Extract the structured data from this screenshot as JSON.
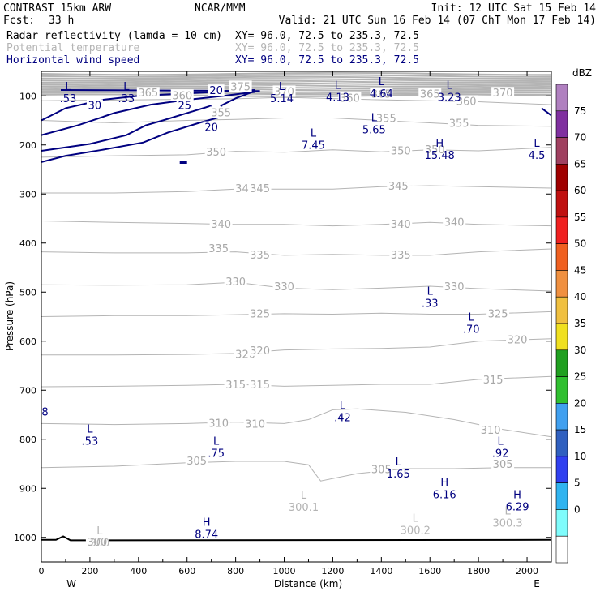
{
  "header": {
    "title": "CONTRAST 15km ARW",
    "source": "NCAR/MMM",
    "init": "Init: 12 UTC Sat 15 Feb 14",
    "fcst_label": "Fcst:",
    "fcst_value": "33 h",
    "valid": "Valid: 21 UTC Sun 16 Feb 14 (07 ChT Mon 17 Feb 14)",
    "fields": [
      {
        "name": "Radar reflectivity (lamda = 10 cm)",
        "xy": "XY=  96.0, 72.5 to 235.3, 72.5",
        "color": "#000000"
      },
      {
        "name": "Potential temperature",
        "xy": "XY=  96.0, 72.5 to 235.3, 72.5",
        "color": "#b4b4b4"
      },
      {
        "name": "Horizontal wind speed",
        "xy": "XY=  96.0, 72.5 to 235.3, 72.5",
        "color": "#000080"
      }
    ]
  },
  "chart_data": {
    "type": "cross-section contour",
    "xlabel": "Distance (km)",
    "ylabel": "Pressure (hPa)",
    "xlim": [
      0,
      2100
    ],
    "ylim": [
      1050,
      50
    ],
    "x_ticks": [
      0,
      200,
      400,
      600,
      800,
      1000,
      1200,
      1400,
      1600,
      1800,
      2000
    ],
    "y_ticks": [
      100,
      200,
      300,
      400,
      500,
      600,
      700,
      800,
      900,
      1000
    ],
    "x_end_labels": {
      "left": "W",
      "right": "E"
    },
    "colorbar": {
      "title": "dBZ",
      "levels": [
        "0",
        "5",
        "10",
        "15",
        "20",
        "25",
        "30",
        "35",
        "40",
        "45",
        "50",
        "55",
        "60",
        "65",
        "70",
        "75"
      ],
      "colors": [
        "#ffffff",
        "#7ffcfc",
        "#30b4f0",
        "#3040f0",
        "#3060c0",
        "#40a0f0",
        "#30c030",
        "#20a020",
        "#f0e020",
        "#f0c040",
        "#f09040",
        "#f06020",
        "#f02020",
        "#c01010",
        "#a00000",
        "#a04060",
        "#8030a0",
        "#b080c0"
      ]
    },
    "theta_contours": [
      {
        "value": 300,
        "labels": [
          {
            "x": 230,
            "p": 1010,
            "text": "300"
          }
        ]
      },
      {
        "value": 305,
        "p_profile": [
          [
            0,
            858
          ],
          [
            300,
            855
          ],
          [
            600,
            848
          ],
          [
            800,
            845
          ],
          [
            1000,
            845
          ],
          [
            1100,
            852
          ],
          [
            1150,
            885
          ],
          [
            1300,
            870
          ],
          [
            1500,
            860
          ],
          [
            1700,
            860
          ],
          [
            1900,
            858
          ],
          [
            2100,
            858
          ]
        ],
        "labels": [
          {
            "x": 640,
            "p": 845,
            "text": "305"
          },
          {
            "x": 1400,
            "p": 862,
            "text": "305"
          },
          {
            "x": 1900,
            "p": 852,
            "text": "305"
          }
        ]
      },
      {
        "value": 310,
        "p_profile": [
          [
            0,
            768
          ],
          [
            300,
            770
          ],
          [
            600,
            768
          ],
          [
            800,
            765
          ],
          [
            1000,
            768
          ],
          [
            1100,
            760
          ],
          [
            1200,
            740
          ],
          [
            1300,
            738
          ],
          [
            1500,
            745
          ],
          [
            1700,
            760
          ],
          [
            1900,
            780
          ],
          [
            2100,
            795
          ]
        ],
        "labels": [
          {
            "x": 730,
            "p": 768,
            "text": "310"
          },
          {
            "x": 880,
            "p": 770,
            "text": "310"
          },
          {
            "x": 1850,
            "p": 782,
            "text": "310"
          }
        ]
      },
      {
        "value": 315,
        "p_profile": [
          [
            0,
            693
          ],
          [
            300,
            692
          ],
          [
            600,
            690
          ],
          [
            800,
            688
          ],
          [
            1000,
            692
          ],
          [
            1200,
            690
          ],
          [
            1400,
            688
          ],
          [
            1600,
            688
          ],
          [
            1800,
            678
          ],
          [
            2100,
            672
          ]
        ],
        "labels": [
          {
            "x": 800,
            "p": 690,
            "text": "315"
          },
          {
            "x": 900,
            "p": 690,
            "text": "315"
          },
          {
            "x": 1860,
            "p": 680,
            "text": "315"
          }
        ]
      },
      {
        "value": 320,
        "p_profile": [
          [
            0,
            628
          ],
          [
            300,
            628
          ],
          [
            600,
            627
          ],
          [
            800,
            625
          ],
          [
            1000,
            618
          ],
          [
            1200,
            616
          ],
          [
            1400,
            615
          ],
          [
            1600,
            612
          ],
          [
            1800,
            600
          ],
          [
            2100,
            595
          ]
        ],
        "labels": [
          {
            "x": 840,
            "p": 628,
            "text": "320"
          },
          {
            "x": 900,
            "p": 620,
            "text": "320"
          },
          {
            "x": 1960,
            "p": 598,
            "text": "320"
          }
        ]
      },
      {
        "value": 325,
        "p_profile": [
          [
            0,
            550
          ],
          [
            300,
            548
          ],
          [
            600,
            548
          ],
          [
            800,
            546
          ],
          [
            1000,
            544
          ],
          [
            1200,
            545
          ],
          [
            1400,
            543
          ],
          [
            1600,
            545
          ],
          [
            1800,
            545
          ],
          [
            2100,
            540
          ]
        ],
        "labels": [
          {
            "x": 900,
            "p": 545,
            "text": "325"
          },
          {
            "x": 1880,
            "p": 545,
            "text": "325"
          }
        ]
      },
      {
        "value": 330,
        "p_profile": [
          [
            0,
            485
          ],
          [
            300,
            486
          ],
          [
            600,
            485
          ],
          [
            800,
            480
          ],
          [
            1000,
            492
          ],
          [
            1200,
            495
          ],
          [
            1400,
            492
          ],
          [
            1600,
            488
          ],
          [
            1800,
            493
          ],
          [
            2100,
            498
          ]
        ],
        "labels": [
          {
            "x": 800,
            "p": 480,
            "text": "330"
          },
          {
            "x": 1000,
            "p": 490,
            "text": "330"
          },
          {
            "x": 1700,
            "p": 490,
            "text": "330"
          }
        ]
      },
      {
        "value": 335,
        "p_profile": [
          [
            0,
            418
          ],
          [
            300,
            420
          ],
          [
            600,
            420
          ],
          [
            800,
            418
          ],
          [
            1000,
            425
          ],
          [
            1200,
            423
          ],
          [
            1400,
            425
          ],
          [
            1600,
            425
          ],
          [
            1800,
            418
          ],
          [
            2100,
            412
          ]
        ],
        "labels": [
          {
            "x": 730,
            "p": 412,
            "text": "335"
          },
          {
            "x": 900,
            "p": 425,
            "text": "335"
          },
          {
            "x": 1480,
            "p": 425,
            "text": "335"
          }
        ]
      },
      {
        "value": 340,
        "p_profile": [
          [
            0,
            355
          ],
          [
            300,
            358
          ],
          [
            600,
            360
          ],
          [
            800,
            362
          ],
          [
            1000,
            362
          ],
          [
            1200,
            365
          ],
          [
            1400,
            362
          ],
          [
            1600,
            358
          ],
          [
            1800,
            362
          ],
          [
            2100,
            365
          ]
        ],
        "labels": [
          {
            "x": 740,
            "p": 362,
            "text": "340"
          },
          {
            "x": 1480,
            "p": 362,
            "text": "340"
          },
          {
            "x": 1700,
            "p": 358,
            "text": "340"
          }
        ]
      },
      {
        "value": 345,
        "p_profile": [
          [
            0,
            298
          ],
          [
            300,
            298
          ],
          [
            600,
            295
          ],
          [
            800,
            290
          ],
          [
            1000,
            290
          ],
          [
            1200,
            290
          ],
          [
            1400,
            285
          ],
          [
            1600,
            283
          ],
          [
            1800,
            285
          ],
          [
            2100,
            288
          ]
        ],
        "labels": [
          {
            "x": 840,
            "p": 290,
            "text": "345"
          },
          {
            "x": 900,
            "p": 290,
            "text": "345"
          },
          {
            "x": 1470,
            "p": 285,
            "text": "345"
          }
        ]
      },
      {
        "value": 350,
        "p_profile": [
          [
            0,
            225
          ],
          [
            300,
            222
          ],
          [
            600,
            220
          ],
          [
            800,
            213
          ],
          [
            1000,
            215
          ],
          [
            1200,
            210
          ],
          [
            1400,
            214
          ],
          [
            1600,
            210
          ],
          [
            1800,
            212
          ],
          [
            2100,
            205
          ]
        ],
        "labels": [
          {
            "x": 720,
            "p": 215,
            "text": "350"
          },
          {
            "x": 1480,
            "p": 213,
            "text": "350"
          },
          {
            "x": 1620,
            "p": 210,
            "text": "350"
          }
        ]
      },
      {
        "value": 355,
        "p_profile": [
          [
            0,
            150
          ],
          [
            300,
            155
          ],
          [
            600,
            150
          ],
          [
            800,
            148
          ],
          [
            1000,
            145
          ],
          [
            1200,
            145
          ],
          [
            1400,
            150
          ],
          [
            1600,
            155
          ],
          [
            1800,
            160
          ],
          [
            2100,
            162
          ]
        ],
        "labels": [
          {
            "x": 740,
            "p": 135,
            "text": "355"
          },
          {
            "x": 1420,
            "p": 147,
            "text": "355"
          },
          {
            "x": 1720,
            "p": 157,
            "text": "355"
          }
        ]
      },
      {
        "value": 360,
        "labels": [
          {
            "x": 580,
            "p": 100,
            "text": "360"
          },
          {
            "x": 1270,
            "p": 105,
            "text": "360"
          },
          {
            "x": 1750,
            "p": 112,
            "text": "360"
          }
        ]
      },
      {
        "value": 365,
        "labels": [
          {
            "x": 440,
            "p": 95,
            "text": "365"
          },
          {
            "x": 1400,
            "p": 97,
            "text": "365"
          },
          {
            "x": 1600,
            "p": 97,
            "text": "365"
          }
        ]
      },
      {
        "value": 370,
        "labels": [
          {
            "x": 1000,
            "p": 92,
            "text": "370"
          },
          {
            "x": 1900,
            "p": 95,
            "text": "370"
          }
        ]
      },
      {
        "value": 375,
        "labels": [
          {
            "x": 820,
            "p": 82,
            "text": "375"
          }
        ]
      }
    ],
    "wind_contours": [
      {
        "value": 30,
        "labels": [
          {
            "x": 220,
            "p": 120,
            "text": "30"
          }
        ]
      },
      {
        "value": 25,
        "labels": [
          {
            "x": 590,
            "p": 120,
            "text": "25"
          }
        ]
      },
      {
        "value": 20,
        "labels": [
          {
            "x": 720,
            "p": 90,
            "text": "20"
          },
          {
            "x": 700,
            "p": 165,
            "text": "20"
          }
        ]
      }
    ],
    "extrema": [
      {
        "kind": "L",
        "value": ".53",
        "x": 110,
        "p": 95,
        "color": "#000080"
      },
      {
        "kind": "L",
        "value": ".33",
        "x": 350,
        "p": 95,
        "color": "#000080"
      },
      {
        "kind": "L",
        "value": "5.14",
        "x": 990,
        "p": 95,
        "color": "#000080"
      },
      {
        "kind": "L",
        "value": "4.13",
        "x": 1220,
        "p": 92,
        "color": "#000080"
      },
      {
        "kind": "L",
        "value": "4.64",
        "x": 1400,
        "p": 85,
        "color": "#000080"
      },
      {
        "kind": "L",
        "value": "3.23",
        "x": 1680,
        "p": 92,
        "color": "#000080"
      },
      {
        "kind": "L",
        "value": "5.65",
        "x": 1370,
        "p": 158,
        "color": "#000080"
      },
      {
        "kind": "L",
        "value": "7.45",
        "x": 1120,
        "p": 190,
        "color": "#000080"
      },
      {
        "kind": "H",
        "value": "15.48",
        "x": 1640,
        "p": 210,
        "color": "#000080"
      },
      {
        "kind": "L",
        "value": "4.5",
        "x": 2040,
        "p": 210,
        "color": "#000080"
      },
      {
        "kind": "L",
        "value": ".33",
        "x": 1600,
        "p": 512,
        "color": "#000080"
      },
      {
        "kind": "L",
        "value": ".70",
        "x": 1770,
        "p": 565,
        "color": "#000080"
      },
      {
        "kind": "L",
        "value": ".42",
        "x": 1240,
        "p": 745,
        "color": "#000080"
      },
      {
        "kind": "L",
        "value": ".53",
        "x": 200,
        "p": 793,
        "color": "#000080"
      },
      {
        "kind": "L",
        "value": ".75",
        "x": 720,
        "p": 818,
        "color": "#000080"
      },
      {
        "kind": "L",
        "value": ".92",
        "x": 1890,
        "p": 818,
        "color": "#000080"
      },
      {
        "kind": "L",
        "value": "1.65",
        "x": 1470,
        "p": 860,
        "color": "#000080"
      },
      {
        "kind": "H",
        "value": "6.16",
        "x": 1660,
        "p": 902,
        "color": "#000080"
      },
      {
        "kind": "H",
        "value": "6.29",
        "x": 1960,
        "p": 927,
        "color": "#000080"
      },
      {
        "kind": "H",
        "value": "8.74",
        "x": 680,
        "p": 983,
        "color": "#000080"
      },
      {
        "kind": "L",
        "value": "300.1",
        "x": 1080,
        "p": 928,
        "color": "#b4b4b4"
      },
      {
        "kind": "L",
        "value": "300.2",
        "x": 1540,
        "p": 975,
        "color": "#b4b4b4"
      },
      {
        "kind": "L",
        "value": "300.3",
        "x": 1920,
        "p": 960,
        "color": "#b4b4b4"
      },
      {
        "kind": "L",
        "value": "300",
        "x": 240,
        "p": 1000,
        "color": "#b4b4b4"
      }
    ],
    "edge_label": {
      "text": "8",
      "x": 15,
      "p": 745,
      "color": "#000080"
    },
    "terrain": {
      "p_profile": [
        [
          0,
          1005
        ],
        [
          60,
          1005
        ],
        [
          90,
          998
        ],
        [
          120,
          1006
        ],
        [
          2100,
          1005
        ]
      ]
    }
  }
}
